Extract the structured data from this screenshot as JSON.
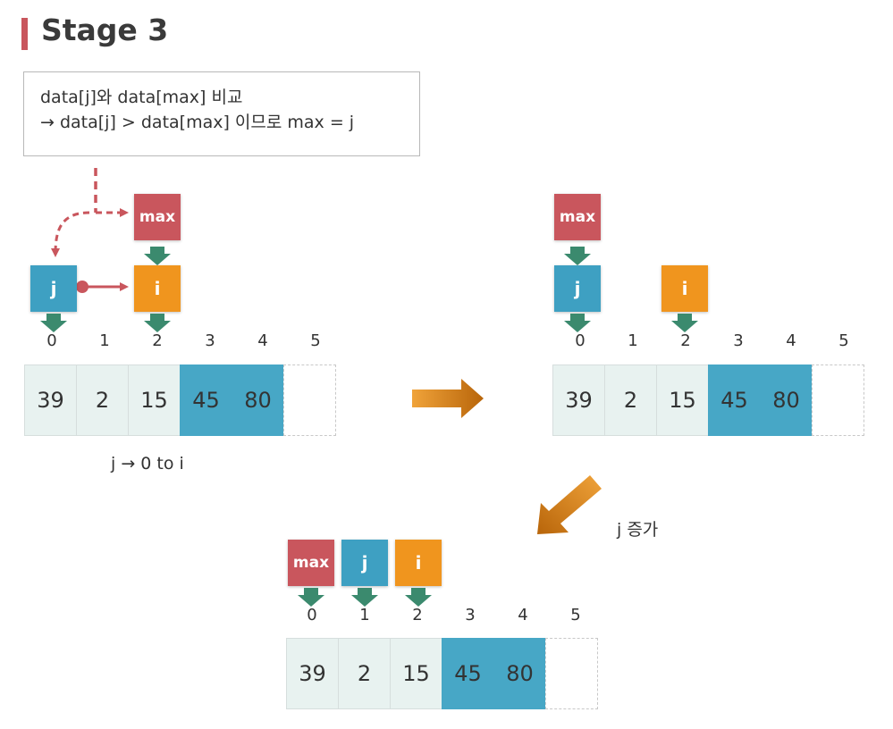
{
  "title": "Stage 3",
  "note": {
    "line1": "data[j]와 data[max] 비교",
    "line2": "→ data[j] > data[max] 이므로 max = j"
  },
  "pointer_labels": {
    "max": "max",
    "j": "j",
    "i": "i"
  },
  "array": {
    "indices": [
      "0",
      "1",
      "2",
      "3",
      "4",
      "5"
    ],
    "values": [
      "39",
      "2",
      "15",
      "45",
      "80",
      ""
    ]
  },
  "loop_caption": "j → 0 to i",
  "step_caption": "j 증가",
  "colors": {
    "max": "#c9565d",
    "j": "#3ea0c2",
    "i": "#f0951e",
    "pointer_arrow": "#3b8a6e",
    "sorted_cell": "#47a7c6",
    "unsorted_cell": "#e8f2f0",
    "flow_arrow": "#d98510",
    "comparison_arrow": "#c9565d"
  },
  "icons": [
    "dashed-curved-arrow",
    "connector-arrow",
    "flow-arrow-right",
    "flow-arrow-down-left"
  ]
}
